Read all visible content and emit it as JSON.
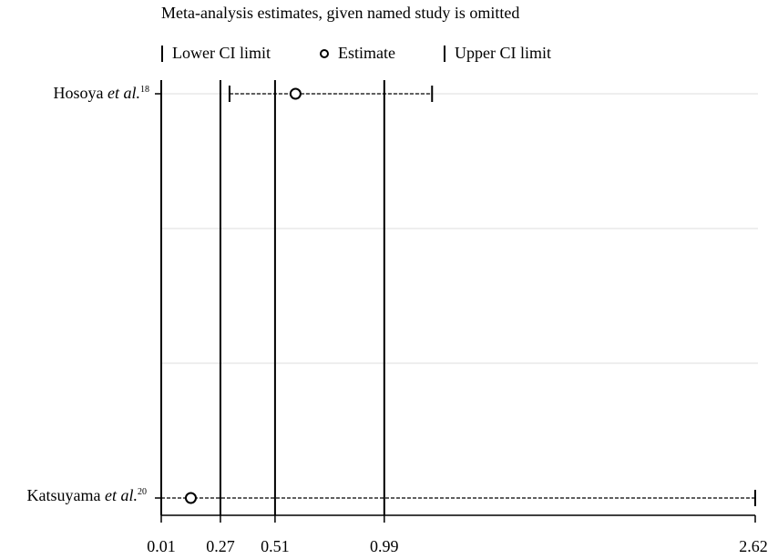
{
  "chart_data": {
    "type": "forest",
    "title": "Meta-analysis estimates, given named study is omitted",
    "legend": [
      "Lower CI limit",
      "Estimate",
      "Upper CI limit"
    ],
    "x_ticks": [
      "0.01",
      "0.27",
      "0.51",
      "0.99",
      "2.62"
    ],
    "xlim": [
      0.01,
      2.62
    ],
    "reference_lines": [
      0.01,
      0.27,
      0.51,
      0.99
    ],
    "studies": [
      {
        "name": "Hosoya",
        "suffix": "et al.",
        "ref": "18",
        "lower": 0.31,
        "estimate": 0.6,
        "upper": 1.2
      },
      {
        "name": "Katsuyama",
        "suffix": "et al.",
        "ref": "20",
        "lower": 0.01,
        "estimate": 0.14,
        "upper": 2.62
      }
    ]
  }
}
